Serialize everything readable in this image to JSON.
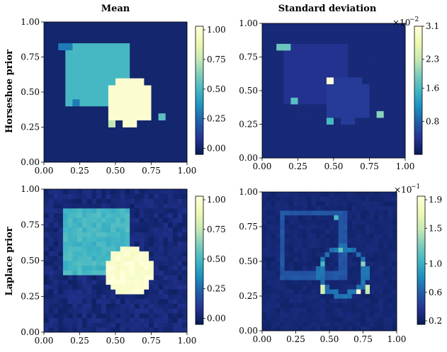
{
  "figure": {
    "col_titles": [
      "Mean",
      "Standard deviation"
    ],
    "row_titles": [
      "Horseshoe prior",
      "Laplace prior"
    ]
  },
  "chart_data": [
    {
      "type": "heatmap",
      "row": "Horseshoe prior",
      "column": "Mean",
      "xlim": [
        0,
        1
      ],
      "ylim": [
        0,
        1
      ],
      "xticks": [
        "0.00",
        "0.25",
        "0.50",
        "0.75",
        "1.00"
      ],
      "yticks": [
        "0.00",
        "0.25",
        "0.50",
        "0.75",
        "1.00"
      ],
      "colormap": "YlGnBu",
      "colorbar": {
        "range": [
          -0.05,
          1.03
        ],
        "ticks": [
          "0.00",
          "0.25",
          "0.50",
          "0.75",
          "1.00"
        ],
        "tick_values": [
          0,
          0.25,
          0.5,
          0.75,
          1.0
        ],
        "multiplier": ""
      },
      "grid_size": 20,
      "background": 0.0,
      "regions": [
        {
          "shape": "square",
          "x": [
            0.15,
            0.6
          ],
          "y": [
            0.4,
            0.85
          ],
          "value": 0.5
        },
        {
          "shape": "circle",
          "center": [
            0.6,
            0.43
          ],
          "radius": 0.17,
          "value": 1.0
        }
      ],
      "hotspots": [
        {
          "x": 0.15,
          "y": 0.8,
          "value": 0.3
        },
        {
          "x": 0.2,
          "y": 0.4,
          "value": 0.3
        },
        {
          "x": 0.45,
          "y": 0.3,
          "value": 0.75
        },
        {
          "x": 0.8,
          "y": 0.35,
          "value": 0.55
        }
      ],
      "noise": 0.0
    },
    {
      "type": "heatmap",
      "row": "Horseshoe prior",
      "column": "Standard deviation",
      "xlim": [
        0,
        1
      ],
      "ylim": [
        0,
        1
      ],
      "xticks": [
        "0.00",
        "0.25",
        "0.50",
        "0.75",
        "1.00"
      ],
      "yticks": [
        "0.00",
        "0.25",
        "0.50",
        "0.75",
        "1.00"
      ],
      "colormap": "YlGnBu",
      "colorbar": {
        "range": [
          0.0,
          3.1
        ],
        "ticks": [
          "0.8",
          "1.6",
          "2.3",
          "3.1"
        ],
        "tick_values": [
          0.8,
          1.6,
          2.3,
          3.1
        ],
        "multiplier": "×10",
        "exponent": "−2"
      },
      "grid_size": 20,
      "background": 0.2,
      "regions": [
        {
          "shape": "square",
          "x": [
            0.15,
            0.6
          ],
          "y": [
            0.4,
            0.85
          ],
          "value": 0.35
        },
        {
          "shape": "circle",
          "center": [
            0.6,
            0.43
          ],
          "radius": 0.17,
          "value": 0.45
        }
      ],
      "hotspots": [
        {
          "x": 0.15,
          "y": 0.8,
          "value": 1.8
        },
        {
          "x": 0.2,
          "y": 0.4,
          "value": 1.7
        },
        {
          "x": 0.45,
          "y": 0.3,
          "value": 1.6
        },
        {
          "x": 0.8,
          "y": 0.35,
          "value": 2.0
        },
        {
          "x": 0.45,
          "y": 0.55,
          "value": 3.1
        },
        {
          "x": 0.75,
          "y": 0.3,
          "value": 3.1
        }
      ],
      "noise": 0.0
    },
    {
      "type": "heatmap",
      "row": "Laplace prior",
      "column": "Mean",
      "xlim": [
        0,
        1
      ],
      "ylim": [
        0,
        1
      ],
      "xticks": [
        "0.00",
        "0.25",
        "0.50",
        "0.75",
        "1.00"
      ],
      "yticks": [
        "0.00",
        "0.25",
        "0.50",
        "0.75",
        "1.00"
      ],
      "colormap": "YlGnBu",
      "colorbar": {
        "range": [
          -0.05,
          1.03
        ],
        "ticks": [
          "0.00",
          "0.25",
          "0.50",
          "0.75",
          "1.00"
        ],
        "tick_values": [
          0,
          0.25,
          0.5,
          0.75,
          1.0
        ],
        "multiplier": ""
      },
      "grid_size": 30,
      "background": 0.02,
      "regions": [
        {
          "shape": "square",
          "x": [
            0.15,
            0.6
          ],
          "y": [
            0.4,
            0.85
          ],
          "value": 0.5
        },
        {
          "shape": "circle",
          "center": [
            0.6,
            0.43
          ],
          "radius": 0.17,
          "value": 1.0
        }
      ],
      "hotspots": [],
      "noise": 0.04
    },
    {
      "type": "heatmap",
      "row": "Laplace prior",
      "column": "Standard deviation",
      "xlim": [
        0,
        1
      ],
      "ylim": [
        0,
        1
      ],
      "xticks": [
        "0.00",
        "0.25",
        "0.50",
        "0.75",
        "1.00"
      ],
      "yticks": [
        "0.00",
        "0.25",
        "0.50",
        "0.75",
        "1.00"
      ],
      "colormap": "YlGnBu",
      "colorbar": {
        "range": [
          0.15,
          1.95
        ],
        "ticks": [
          "0.2",
          "0.6",
          "1.0",
          "1.5",
          "1.9"
        ],
        "tick_values": [
          0.2,
          0.6,
          1.0,
          1.5,
          1.9
        ],
        "multiplier": "×10",
        "exponent": "−1"
      },
      "grid_size": 30,
      "background": 0.25,
      "edges": [
        {
          "shape": "square",
          "x": [
            0.15,
            0.6
          ],
          "y": [
            0.4,
            0.85
          ],
          "value": 0.55
        },
        {
          "shape": "circle",
          "center": [
            0.6,
            0.43
          ],
          "radius": 0.17,
          "value": 0.7
        }
      ],
      "hotspots": [
        {
          "x": 0.55,
          "y": 0.8,
          "value": 1.1
        },
        {
          "x": 0.58,
          "y": 0.6,
          "value": 1.2
        },
        {
          "x": 0.45,
          "y": 0.5,
          "value": 1.1
        },
        {
          "x": 0.75,
          "y": 0.5,
          "value": 1.3
        },
        {
          "x": 0.45,
          "y": 0.3,
          "value": 1.6
        },
        {
          "x": 0.72,
          "y": 0.27,
          "value": 1.9
        },
        {
          "x": 0.78,
          "y": 0.3,
          "value": 1.5
        }
      ],
      "noise": 0.02
    }
  ]
}
